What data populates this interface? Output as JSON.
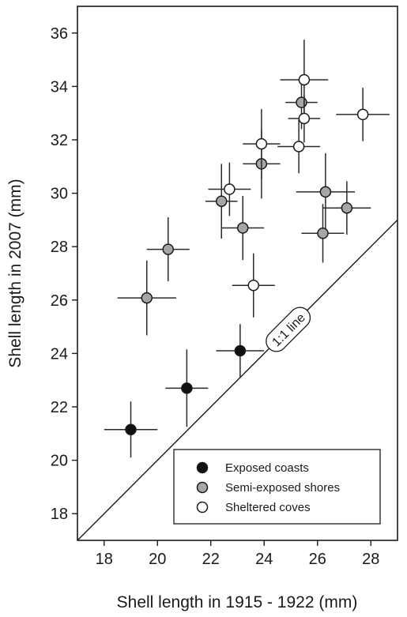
{
  "chart_data": {
    "type": "scatter",
    "xlabel": "Shell length in 1915 - 1922 (mm)",
    "ylabel": "Shell length in 2007 (mm)",
    "xlim": [
      17,
      29
    ],
    "ylim": [
      17,
      37
    ],
    "xticks": [
      18,
      20,
      22,
      24,
      26,
      28
    ],
    "yticks": [
      18,
      20,
      22,
      24,
      26,
      28,
      30,
      32,
      34,
      36
    ],
    "grid": false,
    "legend_position": "bottom-right",
    "reference_line": {
      "label": "1:1 line",
      "slope": 1,
      "intercept": 0
    },
    "series": [
      {
        "name": "Exposed coasts",
        "color": "#111111",
        "points": [
          {
            "x": 19.0,
            "y": 21.15,
            "xerr": 1.0,
            "yerr": 1.05
          },
          {
            "x": 21.1,
            "y": 22.7,
            "xerr": 0.8,
            "yerr": 1.45
          },
          {
            "x": 23.1,
            "y": 24.1,
            "xerr": 0.9,
            "yerr": 1.0
          }
        ]
      },
      {
        "name": "Semi-exposed shores",
        "color": "#a6a6a6",
        "points": [
          {
            "x": 19.6,
            "y": 26.08,
            "xerr": 1.1,
            "yerr": 1.4
          },
          {
            "x": 20.4,
            "y": 27.9,
            "xerr": 0.8,
            "yerr": 1.2
          },
          {
            "x": 22.4,
            "y": 29.7,
            "xerr": 0.6,
            "yerr": 1.4
          },
          {
            "x": 23.2,
            "y": 28.7,
            "xerr": 0.8,
            "yerr": 1.2
          },
          {
            "x": 23.9,
            "y": 31.1,
            "xerr": 0.7,
            "yerr": 1.3
          },
          {
            "x": 25.4,
            "y": 33.4,
            "xerr": 0.6,
            "yerr": 1.0
          },
          {
            "x": 26.3,
            "y": 30.05,
            "xerr": 1.1,
            "yerr": 1.45
          },
          {
            "x": 26.2,
            "y": 28.5,
            "xerr": 0.8,
            "yerr": 1.1
          },
          {
            "x": 27.1,
            "y": 29.45,
            "xerr": 0.9,
            "yerr": 1.0
          }
        ]
      },
      {
        "name": "Sheltered coves",
        "color": "#ffffff",
        "points": [
          {
            "x": 22.7,
            "y": 30.15,
            "xerr": 0.8,
            "yerr": 1.0
          },
          {
            "x": 23.9,
            "y": 31.85,
            "xerr": 0.7,
            "yerr": 1.3
          },
          {
            "x": 23.6,
            "y": 26.55,
            "xerr": 0.8,
            "yerr": 1.2
          },
          {
            "x": 25.3,
            "y": 31.75,
            "xerr": 0.8,
            "yerr": 1.0
          },
          {
            "x": 25.5,
            "y": 34.25,
            "xerr": 0.9,
            "yerr": 1.5
          },
          {
            "x": 25.5,
            "y": 32.8,
            "xerr": 0.6,
            "yerr": 0.9
          },
          {
            "x": 27.7,
            "y": 32.95,
            "xerr": 1.0,
            "yerr": 1.0
          }
        ]
      }
    ]
  }
}
